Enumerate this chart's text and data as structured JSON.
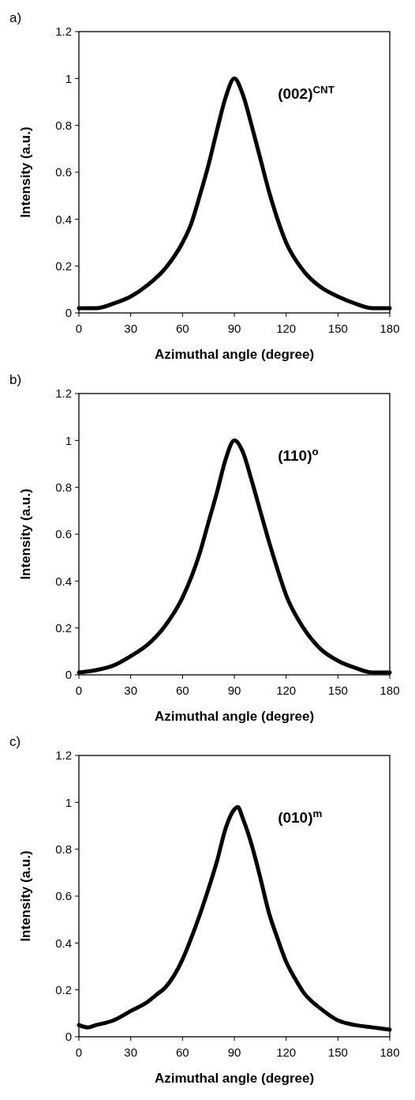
{
  "chart_data": [
    {
      "type": "line",
      "title": "a)",
      "xlabel": "Azimuthal angle (degree)",
      "ylabel": "Intensity (a.u.)",
      "annotations": [
        "(002)$^{CNT}$"
      ],
      "xlim": [
        0,
        180
      ],
      "xticks": [
        0,
        30,
        60,
        90,
        120,
        150,
        180
      ],
      "ylim": [
        0,
        1.2
      ],
      "yticks": [
        0,
        0.2,
        0.4,
        0.6,
        0.8,
        1,
        1.2
      ],
      "grid": false,
      "marker": "none",
      "line_style": "solid",
      "series": [
        {
          "color": "#000000",
          "x": [
            0,
            10,
            20,
            30,
            40,
            50,
            60,
            65,
            70,
            75,
            80,
            85,
            90,
            95,
            100,
            105,
            110,
            115,
            120,
            130,
            140,
            150,
            160,
            170,
            180
          ],
          "values": [
            0.02,
            0.02,
            0.04,
            0.07,
            0.12,
            0.19,
            0.3,
            0.38,
            0.5,
            0.63,
            0.78,
            0.92,
            1.0,
            0.93,
            0.8,
            0.66,
            0.52,
            0.4,
            0.3,
            0.18,
            0.11,
            0.07,
            0.04,
            0.02,
            0.02
          ]
        }
      ]
    },
    {
      "type": "line",
      "title": "b)",
      "xlabel": "Azimuthal angle (degree)",
      "ylabel": "Intensity (a.u.)",
      "annotations": [
        "(110)$^{o}$"
      ],
      "xlim": [
        0,
        180
      ],
      "xticks": [
        0,
        30,
        60,
        90,
        120,
        150,
        180
      ],
      "ylim": [
        0,
        1.2
      ],
      "yticks": [
        0,
        0.2,
        0.4,
        0.6,
        0.8,
        1,
        1.2
      ],
      "grid": false,
      "marker": "none",
      "line_style": "solid",
      "series": [
        {
          "color": "#000000",
          "x": [
            0,
            10,
            20,
            30,
            40,
            50,
            60,
            70,
            75,
            80,
            85,
            90,
            95,
            100,
            105,
            110,
            115,
            120,
            130,
            140,
            150,
            160,
            170,
            180
          ],
          "values": [
            0.01,
            0.02,
            0.04,
            0.08,
            0.13,
            0.21,
            0.33,
            0.52,
            0.65,
            0.78,
            0.92,
            1.0,
            0.95,
            0.83,
            0.7,
            0.57,
            0.45,
            0.34,
            0.2,
            0.11,
            0.06,
            0.03,
            0.01,
            0.01
          ]
        }
      ]
    },
    {
      "type": "line",
      "title": "c)",
      "xlabel": "Azimuthal angle (degree)",
      "ylabel": "Intensity (a.u.)",
      "annotations": [
        "(010)$^{m}$"
      ],
      "xlim": [
        0,
        180
      ],
      "xticks": [
        0,
        30,
        60,
        90,
        120,
        150,
        180
      ],
      "ylim": [
        0,
        1.2
      ],
      "yticks": [
        0,
        0.2,
        0.4,
        0.6,
        0.8,
        1,
        1.2
      ],
      "grid": false,
      "marker": "none",
      "line_style": "solid",
      "series": [
        {
          "color": "#000000",
          "x": [
            0,
            5,
            10,
            20,
            30,
            40,
            45,
            50,
            60,
            65,
            70,
            75,
            80,
            85,
            90,
            92,
            95,
            100,
            105,
            110,
            115,
            120,
            125,
            130,
            140,
            150,
            160,
            170,
            180
          ],
          "values": [
            0.05,
            0.04,
            0.05,
            0.07,
            0.11,
            0.15,
            0.18,
            0.21,
            0.33,
            0.42,
            0.52,
            0.63,
            0.75,
            0.89,
            0.97,
            0.98,
            0.93,
            0.82,
            0.68,
            0.53,
            0.42,
            0.32,
            0.25,
            0.19,
            0.12,
            0.07,
            0.05,
            0.04,
            0.03
          ]
        }
      ]
    }
  ]
}
